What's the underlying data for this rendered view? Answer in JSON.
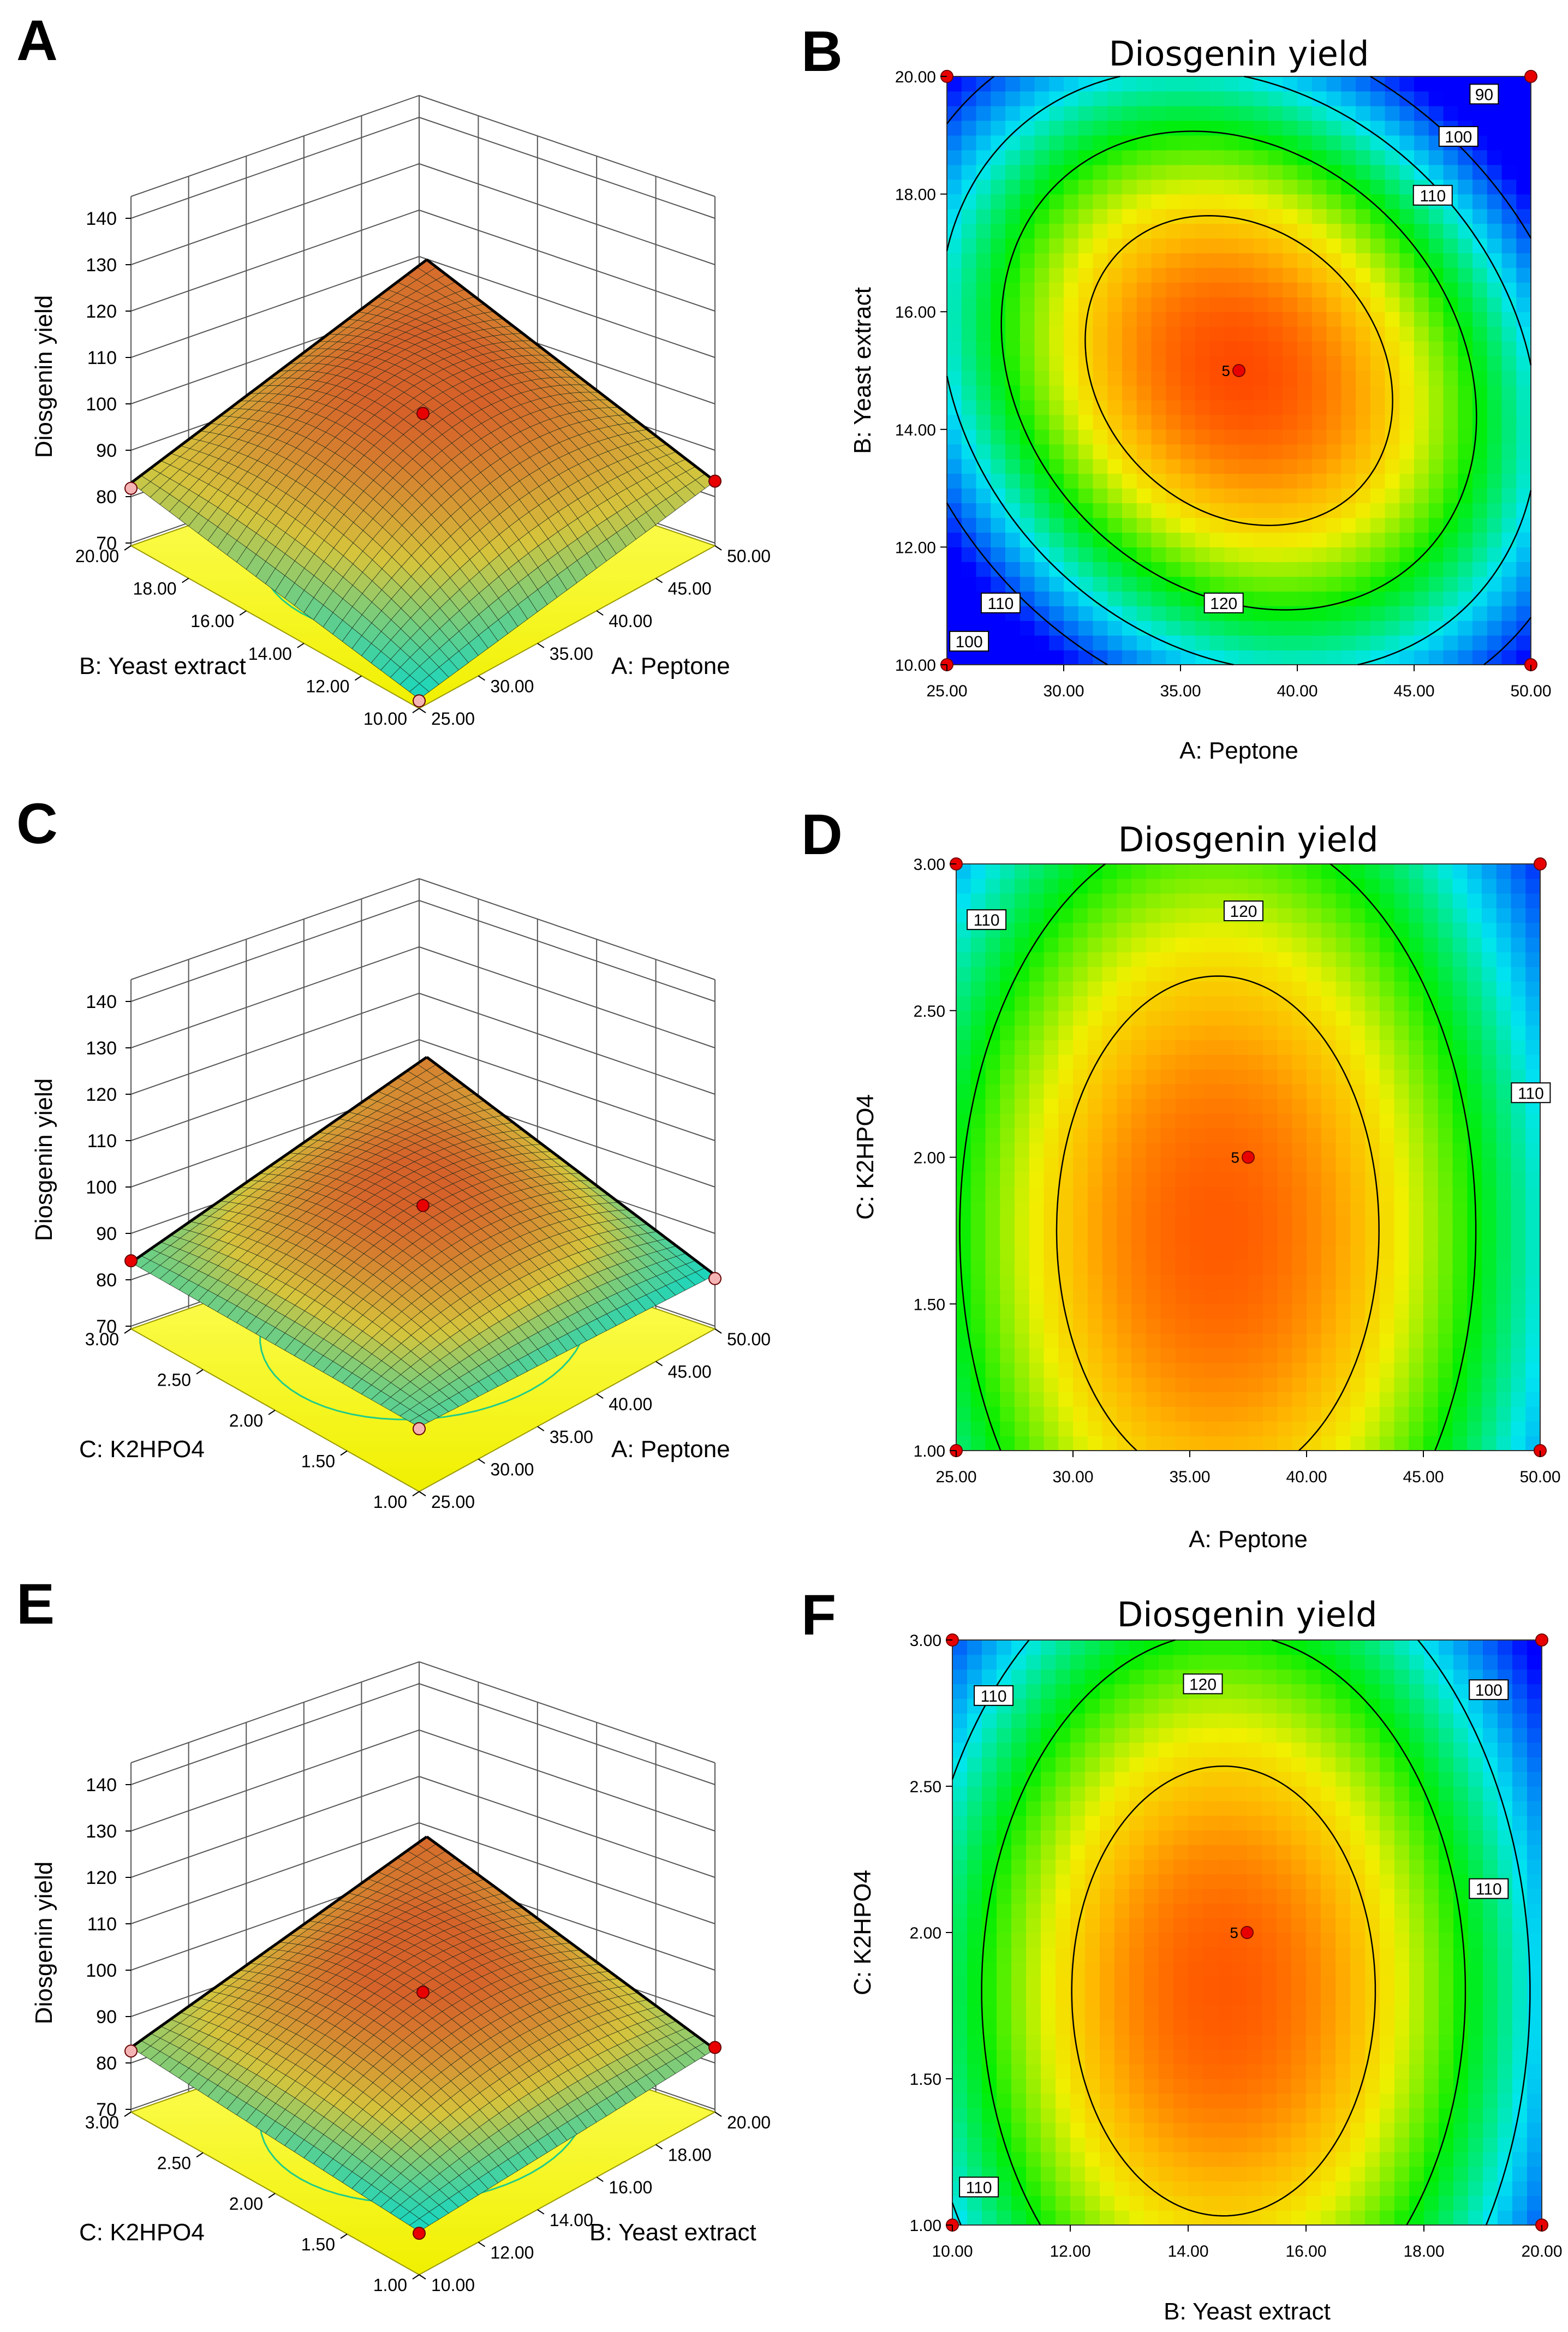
{
  "figure": {
    "panel_letters": [
      "A",
      "B",
      "C",
      "D",
      "E",
      "F"
    ],
    "colors": {
      "surface_low": "#16d6c0",
      "surface_high": "#d6622a",
      "floor": "#ffff00",
      "floor_contour": "#22cc88",
      "grid": "#555555",
      "design_point": "#e80000",
      "design_point_below": "#f4b4b4",
      "contour_line": "#000000",
      "map_low": "#0000ff",
      "map_mid": "#00ee00",
      "map_high": "#ff3a00"
    }
  },
  "chart_data": [
    {
      "panel": "A",
      "type": "surface3d",
      "zlabel": "Diosgenin yield",
      "zticks": [
        "70",
        "80",
        "90",
        "100",
        "110",
        "120",
        "130",
        "140"
      ],
      "zlim": [
        65,
        140
      ],
      "right_axis": {
        "label": "A: Peptone",
        "range": [
          25,
          50
        ],
        "ticks": [
          "25.00",
          "30.00",
          "35.00",
          "40.00",
          "45.00",
          "50.00"
        ]
      },
      "left_axis": {
        "label": "B: Yeast extract",
        "range": [
          10,
          20
        ],
        "ticks": [
          "10.00",
          "12.00",
          "14.00",
          "16.00",
          "18.00",
          "20.00"
        ]
      },
      "corners": {
        "back": 133,
        "left": 99,
        "right": 100,
        "front": 69
      },
      "design_points": [
        {
          "pos": "center",
          "value": 138,
          "above": true
        },
        {
          "pos": "left",
          "value": 96,
          "above": false
        },
        {
          "pos": "right",
          "value": 100,
          "above": true
        },
        {
          "pos": "front",
          "value": 68,
          "above": false
        }
      ]
    },
    {
      "panel": "B",
      "type": "contour",
      "title": "Diosgenin yield",
      "xlabel": "A: Peptone",
      "ylabel": "B: Yeast extract",
      "xlim": [
        25,
        50
      ],
      "ylim": [
        10,
        20
      ],
      "xticks": [
        "25.00",
        "30.00",
        "35.00",
        "40.00",
        "45.00",
        "50.00"
      ],
      "yticks": [
        "10.00",
        "12.00",
        "14.00",
        "16.00",
        "18.00",
        "20.00"
      ],
      "model": {
        "b0": 127.2,
        "x0": 37.5,
        "y0": 15,
        "a": 27,
        "c": 27,
        "d": 10.5
      },
      "levels": [
        90,
        100,
        110,
        120
      ],
      "labels": [
        {
          "text": "90",
          "x": 48.0,
          "y": 19.7
        },
        {
          "text": "100",
          "x": 46.9,
          "y": 18.98
        },
        {
          "text": "110",
          "x": 45.8,
          "y": 17.98
        },
        {
          "text": "120",
          "x": 36.85,
          "y": 11.05
        },
        {
          "text": "110",
          "x": 27.3,
          "y": 11.05
        },
        {
          "text": "100",
          "x": 25.95,
          "y": 10.4
        }
      ],
      "center_point": {
        "x": 37.5,
        "y": 15,
        "label": "5"
      },
      "corner_points": [
        [
          25,
          10
        ],
        [
          25,
          20
        ],
        [
          50,
          10
        ],
        [
          50,
          20
        ]
      ]
    },
    {
      "panel": "C",
      "type": "surface3d",
      "zlabel": "Diosgenin yield",
      "zticks": [
        "70",
        "80",
        "90",
        "100",
        "110",
        "120",
        "130",
        "140"
      ],
      "zlim": [
        65,
        140
      ],
      "right_axis": {
        "label": "A: Peptone",
        "range": [
          25,
          50
        ],
        "ticks": [
          "25.00",
          "30.00",
          "35.00",
          "40.00",
          "45.00",
          "50.00"
        ]
      },
      "left_axis": {
        "label": "C: K2HPO4",
        "range": [
          1,
          3
        ],
        "ticks": [
          "1.00",
          "1.50",
          "2.00",
          "2.50",
          "3.00"
        ]
      },
      "corners": {
        "back": 125,
        "left": 101,
        "right": 94,
        "front": 100
      },
      "design_points": [
        {
          "pos": "center",
          "value": 133,
          "above": true
        },
        {
          "pos": "left",
          "value": 102,
          "above": true
        },
        {
          "pos": "right",
          "value": 92,
          "above": false
        },
        {
          "pos": "front",
          "value": 99,
          "above": false
        }
      ]
    },
    {
      "panel": "D",
      "type": "contour",
      "title": "Diosgenin yield",
      "xlabel": "A: Peptone",
      "ylabel": "C: K2HPO4",
      "xlim": [
        25,
        50
      ],
      "ylim": [
        1,
        3
      ],
      "xticks": [
        "25.00",
        "30.00",
        "35.00",
        "40.00",
        "45.00",
        "50.00"
      ],
      "yticks": [
        "1.00",
        "1.50",
        "2.00",
        "2.50",
        "3.00"
      ],
      "model": {
        "b0": 126.4,
        "x0": 36.2,
        "y0": 1.75,
        "a": 21,
        "c": 8.5,
        "d": 0
      },
      "levels": [
        110,
        120
      ],
      "labels": [
        {
          "text": "120",
          "x": 37.3,
          "y": 2.84
        },
        {
          "text": "110",
          "x": 26.3,
          "y": 2.81
        },
        {
          "text": "110",
          "x": 49.6,
          "y": 2.22
        }
      ],
      "center_point": {
        "x": 37.5,
        "y": 2,
        "label": "5"
      },
      "corner_points": [
        [
          25,
          1
        ],
        [
          25,
          3
        ],
        [
          50,
          1
        ],
        [
          50,
          3
        ]
      ]
    },
    {
      "panel": "E",
      "type": "surface3d",
      "zlabel": "Diosgenin yield",
      "zticks": [
        "70",
        "80",
        "90",
        "100",
        "110",
        "120",
        "130",
        "140"
      ],
      "zlim": [
        65,
        140
      ],
      "right_axis": {
        "label": "B: Yeast extract",
        "range": [
          10,
          20
        ],
        "ticks": [
          "10.00",
          "12.00",
          "14.00",
          "16.00",
          "18.00",
          "20.00"
        ]
      },
      "left_axis": {
        "label": "C: K2HPO4",
        "range": [
          1,
          3
        ],
        "ticks": [
          "1.00",
          "1.50",
          "2.00",
          "2.50",
          "3.00"
        ]
      },
      "corners": {
        "back": 127,
        "left": 100,
        "right": 99,
        "front": 88
      },
      "design_points": [
        {
          "pos": "center",
          "value": 131,
          "above": true
        },
        {
          "pos": "left",
          "value": 98,
          "above": false
        },
        {
          "pos": "right",
          "value": 100,
          "above": true
        },
        {
          "pos": "front",
          "value": 87,
          "above": true
        }
      ]
    },
    {
      "panel": "F",
      "type": "contour",
      "title": "Diosgenin yield",
      "xlabel": "B: Yeast extract",
      "ylabel": "C: K2HPO4",
      "xlim": [
        10,
        20
      ],
      "ylim": [
        1,
        3
      ],
      "xticks": [
        "10.00",
        "12.00",
        "14.00",
        "16.00",
        "18.00",
        "20.00"
      ],
      "yticks": [
        "1.00",
        "1.50",
        "2.00",
        "2.50",
        "3.00"
      ],
      "model": {
        "b0": 126.5,
        "x0": 14.6,
        "y0": 1.8,
        "a": 24.5,
        "c": 11,
        "d": 0
      },
      "levels": [
        100,
        110,
        120
      ],
      "labels": [
        {
          "text": "120",
          "x": 14.25,
          "y": 2.85
        },
        {
          "text": "110",
          "x": 10.7,
          "y": 2.81
        },
        {
          "text": "100",
          "x": 19.1,
          "y": 2.83
        },
        {
          "text": "110",
          "x": 19.1,
          "y": 2.15
        },
        {
          "text": "110",
          "x": 10.45,
          "y": 1.13
        }
      ],
      "center_point": {
        "x": 15,
        "y": 2,
        "label": "5"
      },
      "corner_points": [
        [
          10,
          1
        ],
        [
          10,
          3
        ],
        [
          20,
          1
        ],
        [
          20,
          3
        ]
      ]
    }
  ]
}
